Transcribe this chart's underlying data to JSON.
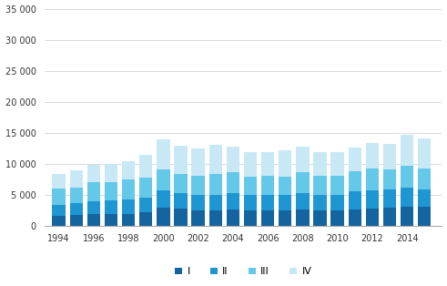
{
  "years": [
    1994,
    1995,
    1996,
    1997,
    1998,
    1999,
    2000,
    2001,
    2002,
    2003,
    2004,
    2005,
    2006,
    2007,
    2008,
    2009,
    2010,
    2011,
    2012,
    2013,
    2014,
    2015
  ],
  "Q1": [
    1600,
    1700,
    1900,
    1900,
    1900,
    2100,
    2900,
    2700,
    2400,
    2400,
    2600,
    2400,
    2400,
    2400,
    2600,
    2400,
    2400,
    2600,
    2700,
    2900,
    3100,
    3100
  ],
  "Q2": [
    1800,
    1900,
    2100,
    2200,
    2300,
    2400,
    2800,
    2600,
    2600,
    2600,
    2700,
    2500,
    2500,
    2500,
    2700,
    2600,
    2600,
    2900,
    3000,
    2900,
    3100,
    2800
  ],
  "Q3": [
    2600,
    2600,
    3000,
    2900,
    3200,
    3300,
    3300,
    3000,
    3000,
    3300,
    3300,
    3000,
    3100,
    3000,
    3400,
    3000,
    3000,
    3300,
    3500,
    3300,
    3500,
    3300
  ],
  "Q4": [
    2300,
    2700,
    2800,
    2900,
    3000,
    3600,
    4900,
    4600,
    4400,
    4800,
    4100,
    3900,
    3800,
    4300,
    4000,
    3800,
    3800,
    3800,
    4100,
    4100,
    5000,
    4900
  ],
  "colors": [
    "#1464a0",
    "#1e96d2",
    "#64c8e8",
    "#c8e8f5"
  ],
  "ylim": [
    0,
    35000
  ],
  "yticks": [
    0,
    5000,
    10000,
    15000,
    20000,
    25000,
    30000,
    35000
  ],
  "ytick_labels": [
    "0",
    "5 000",
    "10 000",
    "15 000",
    "20 000",
    "25 000",
    "30 000",
    "35 000"
  ],
  "xtick_years": [
    1994,
    1996,
    1998,
    2000,
    2002,
    2004,
    2006,
    2008,
    2010,
    2012,
    2014
  ],
  "legend_labels": [
    "I",
    "II",
    "III",
    "IV"
  ],
  "bar_width": 0.75
}
